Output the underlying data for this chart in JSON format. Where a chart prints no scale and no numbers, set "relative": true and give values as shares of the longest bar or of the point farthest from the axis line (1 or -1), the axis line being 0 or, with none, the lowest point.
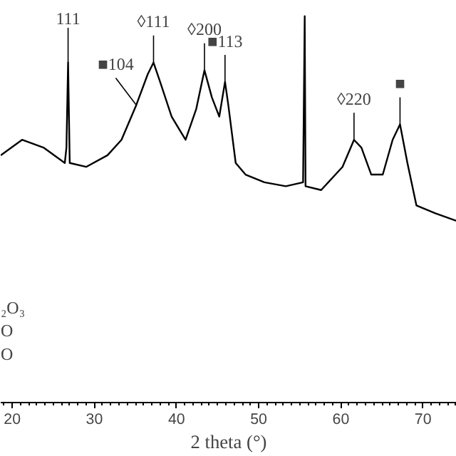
{
  "chart_data": {
    "type": "line",
    "xlabel": "2 theta (°)",
    "relative": true,
    "xlim": [
      18.6,
      74.1
    ],
    "xticks": [
      20,
      30,
      40,
      50,
      60,
      70
    ],
    "grid": false,
    "marker": "none",
    "line_style": "solid",
    "series": [
      {
        "color": "#000000",
        "x": [
          18.6,
          21.2,
          23.8,
          26.4,
          26.6,
          26.8,
          27.0,
          29.0,
          31.6,
          33.3,
          35.1,
          36.5,
          37.2,
          38.0,
          39.4,
          41.1,
          42.4,
          43.4,
          44.3,
          45.2,
          45.9,
          46.3,
          47.2,
          48.4,
          50.7,
          53.3,
          55.4,
          55.6,
          55.7,
          57.6,
          60.2,
          61.6,
          62.5,
          63.7,
          65.1,
          66.3,
          67.2,
          68.1,
          69.2,
          71.5,
          74.1
        ],
        "values": [
          0.64,
          0.68,
          0.66,
          0.62,
          0.66,
          0.88,
          0.62,
          0.61,
          0.64,
          0.68,
          0.77,
          0.85,
          0.88,
          0.83,
          0.74,
          0.68,
          0.76,
          0.86,
          0.79,
          0.74,
          0.83,
          0.77,
          0.62,
          0.59,
          0.57,
          0.56,
          0.57,
          1.0,
          0.56,
          0.55,
          0.61,
          0.68,
          0.66,
          0.59,
          0.59,
          0.68,
          0.72,
          0.62,
          0.51,
          0.49,
          0.47
        ]
      }
    ],
    "annotations": [
      {
        "text": "111",
        "x": 26.8,
        "y": 0.88
      },
      {
        "text": "■104",
        "x": 35.1,
        "y": 0.77
      },
      {
        "text": "◊111",
        "x": 37.2,
        "y": 0.88
      },
      {
        "text": "◊200",
        "x": 43.4,
        "y": 0.86
      },
      {
        "text": "■113",
        "x": 45.9,
        "y": 0.83
      },
      {
        "text": "◊220",
        "x": 61.6,
        "y": 0.68
      },
      {
        "text": "■",
        "x": 67.2,
        "y": 0.72
      },
      "₂O₃",
      "O",
      "O"
    ]
  }
}
